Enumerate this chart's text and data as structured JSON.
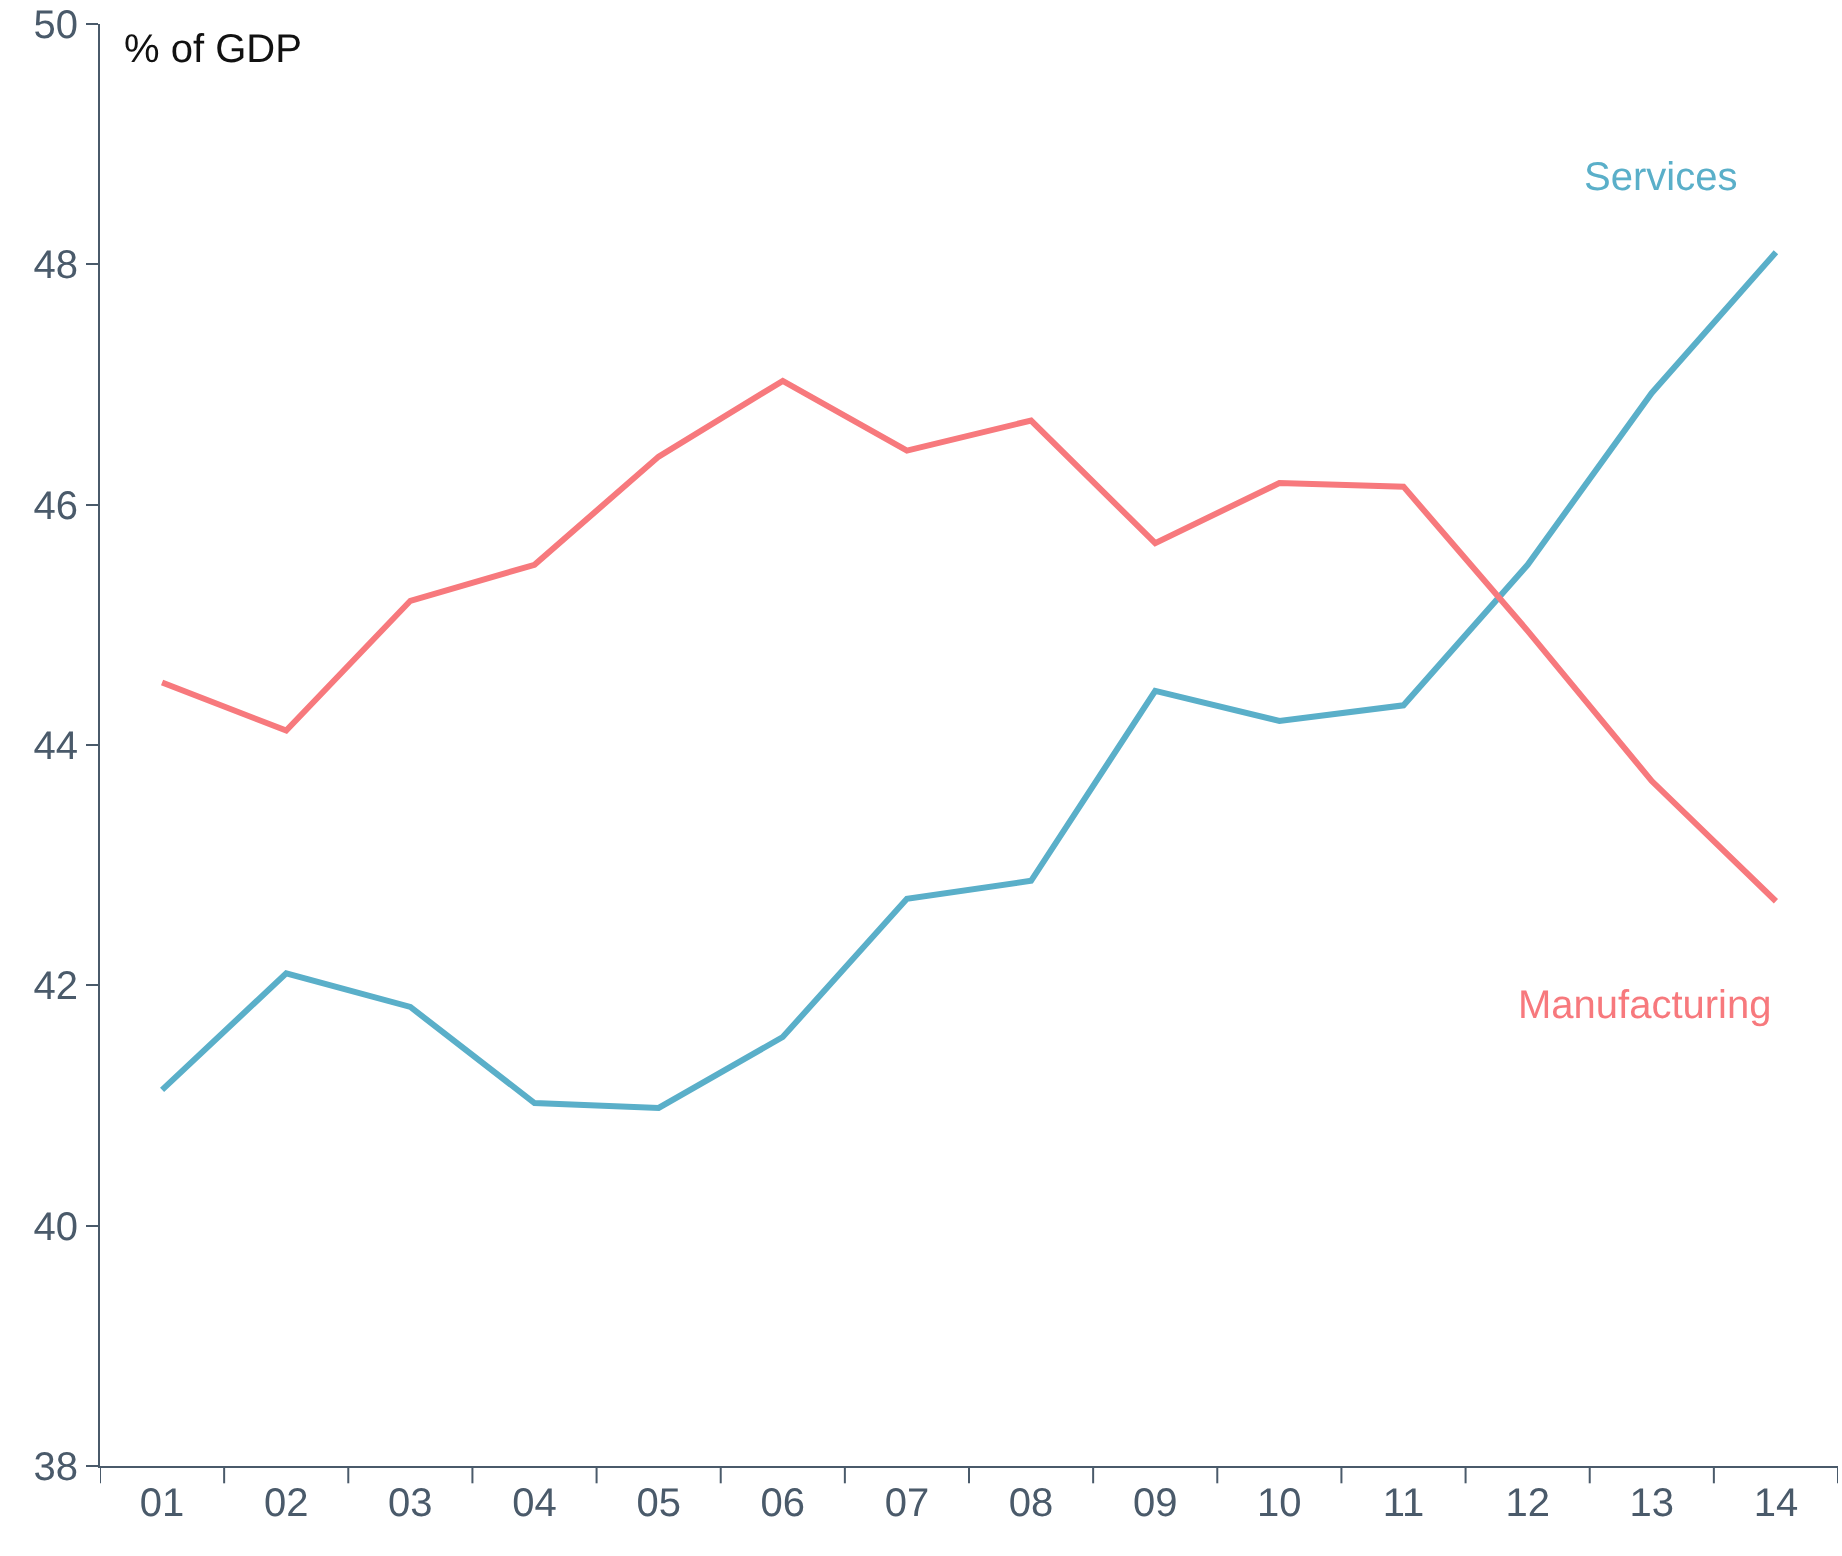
{
  "chart_data": {
    "type": "line",
    "ylabel": "% of GDP",
    "categories": [
      "01",
      "02",
      "03",
      "04",
      "05",
      "06",
      "07",
      "08",
      "09",
      "10",
      "11",
      "12",
      "13",
      "14"
    ],
    "series": [
      {
        "name": "Services",
        "color": "#5aafc9",
        "values": [
          41.13,
          42.1,
          41.82,
          41.02,
          40.98,
          41.57,
          42.72,
          42.87,
          44.45,
          44.2,
          44.33,
          45.5,
          46.93,
          48.1
        ]
      },
      {
        "name": "Manufacturing",
        "color": "#f7797d",
        "values": [
          44.52,
          44.12,
          45.2,
          45.5,
          46.4,
          47.03,
          46.45,
          46.7,
          45.68,
          46.18,
          46.15,
          44.95,
          43.7,
          42.7
        ]
      }
    ],
    "ylim": [
      38,
      50
    ],
    "yticks": [
      38,
      40,
      42,
      44,
      46,
      48,
      50
    ],
    "legend": false,
    "marker": "none",
    "line_style": "solid"
  }
}
